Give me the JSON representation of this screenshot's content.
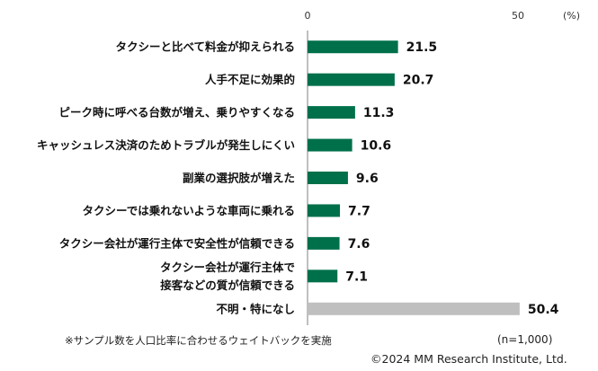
{
  "chart_data": {
    "type": "bar",
    "orientation": "horizontal",
    "unit_label": "(%)",
    "xlim": [
      0,
      50
    ],
    "ticks": [
      "0",
      "50"
    ],
    "categories": [
      "タクシーと比べて料金が抑えられる",
      "人手不足に効果的",
      "ピーク時に呼べる台数が増え、乗りやすくなる",
      "キャッシュレス決済のためトラブルが発生しにくい",
      "副業の選択肢が増えた",
      "タクシーでは乗れないような車両に乗れる",
      "タクシー会社が運行主体で安全性が信頼できる",
      "タクシー会社が運行主体で\n接客などの質が信頼できる",
      "不明・特になし"
    ],
    "values": [
      21.5,
      20.7,
      11.3,
      10.6,
      9.6,
      7.7,
      7.6,
      7.1,
      50.4
    ],
    "value_labels": [
      "21.5",
      "20.7",
      "11.3",
      "10.6",
      "9.6",
      "7.7",
      "7.6",
      "7.1",
      "50.4"
    ],
    "bar_colors": [
      "#00704a",
      "#00704a",
      "#00704a",
      "#00704a",
      "#00704a",
      "#00704a",
      "#00704a",
      "#00704a",
      "#bfbfbf"
    ]
  },
  "footnote": "※サンプル数を人口比率に合わせるウェイトバックを実施",
  "sample_size": "(n=1,000)",
  "copyright": "©2024 MM Research Institute, Ltd."
}
